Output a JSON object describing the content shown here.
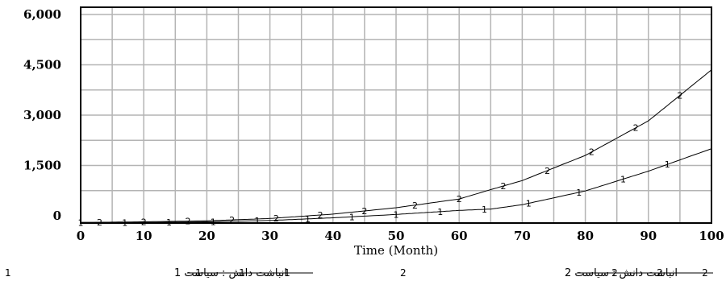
{
  "chart_data": {
    "type": "line",
    "xlabel": "Time (Month)",
    "xlim": [
      0,
      100
    ],
    "ylim": [
      -200,
      6200
    ],
    "x_ticks": [
      "0",
      "10",
      "20",
      "30",
      "40",
      "50",
      "60",
      "70",
      "80",
      "90",
      "100"
    ],
    "y_ticks": [
      "6,000",
      "4,500",
      "3,000",
      "1,500",
      "0"
    ],
    "grid": true,
    "legend_position": "bottom",
    "x": [
      0,
      10,
      20,
      30,
      40,
      50,
      60,
      65,
      70,
      80,
      90,
      100
    ],
    "series": [
      {
        "name": "انباشت دانش : سیاست 1",
        "marker": "1",
        "values": [
          -200,
          -200,
          -180,
          -140,
          -60,
          40,
          160,
          200,
          330,
          740,
          1330,
          2000
        ],
        "marker_x": [
          0,
          7,
          14,
          21,
          28,
          36,
          43,
          50,
          57,
          64,
          71,
          79,
          86,
          93
        ]
      },
      {
        "name": "انباشت دانش : سیاست 2",
        "marker": "2",
        "values": [
          -200,
          -180,
          -150,
          -80,
          50,
          240,
          500,
          780,
          1050,
          1800,
          2830,
          4350
        ],
        "marker_x": [
          3,
          10,
          17,
          24,
          31,
          38,
          45,
          53,
          60,
          67,
          74,
          81,
          88,
          95
        ]
      }
    ]
  }
}
